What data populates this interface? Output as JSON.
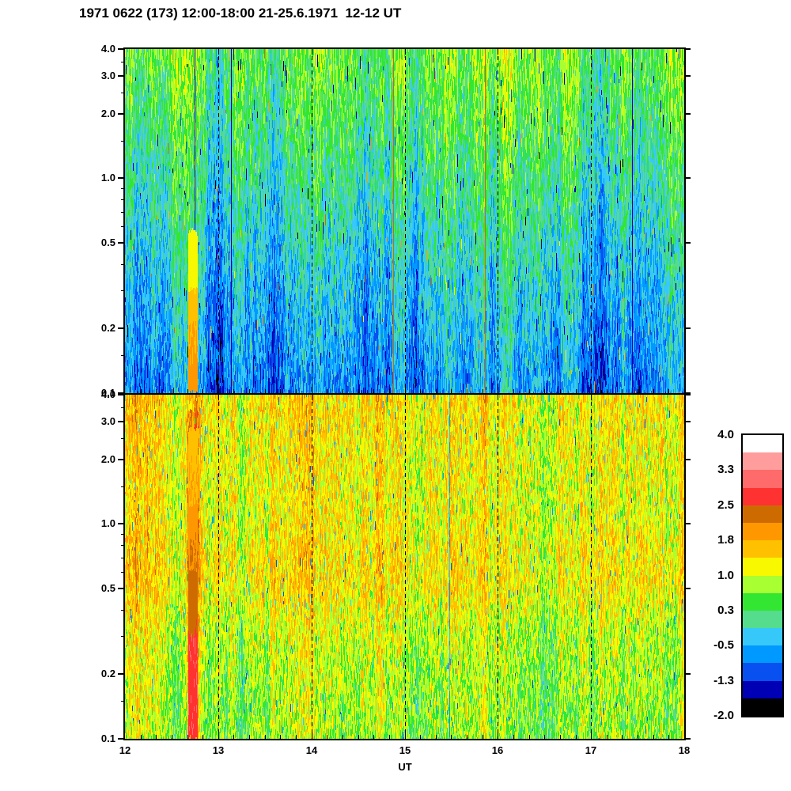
{
  "title": "1971 0622 (173) 12:00-18:00 21-25.6.1971  12-12 UT",
  "chart_data": {
    "type": "heatmap",
    "title": "1971 0622 (173) 12:00-18:00 21-25.6.1971  12-12 UT",
    "xlabel": "UT",
    "x_range": [
      12,
      18
    ],
    "x_major_ticks": [
      12,
      13,
      14,
      15,
      16,
      17,
      18
    ],
    "x_tick_labels": [
      "12",
      "13",
      "14",
      "15",
      "16",
      "17",
      "18"
    ],
    "x_minor_step_hours": 0.166667,
    "dashed_gridlines_ut": [
      13,
      14,
      15,
      16,
      17
    ],
    "y_scale": "log",
    "y_range": [
      0.1,
      4.0
    ],
    "y_major_ticks": [
      4.0,
      3.0,
      2.0,
      1.0,
      0.5,
      0.2,
      0.1
    ],
    "y_tick_labels": [
      "4.0",
      "3.0",
      "2.0",
      "1.0",
      "0.5",
      "0.2",
      "0.1"
    ],
    "y_minor_ticks": [
      3.5,
      2.5,
      1.5,
      0.9,
      0.8,
      0.7,
      0.6,
      0.4,
      0.3,
      0.15
    ],
    "colorbar": {
      "value_range": [
        -2.0,
        4.0
      ],
      "band_value_step": 0.375,
      "labels": [
        "4.0",
        "3.3",
        "2.5",
        "1.8",
        "1.0",
        "0.3",
        "-0.5",
        "-1.3",
        "-2.0"
      ],
      "band_colors_top_to_bottom": [
        "#FFFFFF",
        "#FF9C9C",
        "#FF6B6B",
        "#FF3232",
        "#CE6B00",
        "#FF9800",
        "#FFC000",
        "#F8F800",
        "#A8FF32",
        "#32E632",
        "#55DC8C",
        "#37C8FA",
        "#0099FF",
        "#0850F0",
        "#0000B4",
        "#000000"
      ],
      "position": "right"
    },
    "event": {
      "ut_core_start": 12.675,
      "ut_core_end": 12.775,
      "ut_halo_start": 12.655,
      "ut_halo_end": 12.795,
      "description": "Strong burst/absorption event near 12.7 UT: yellow-orange column in upper panel below 0.5, orange-brown-red column in lower panel"
    },
    "panels": [
      {
        "id": "upper",
        "seed": 1971,
        "description": "Upper spectrogram panel: green/yellow-green/teal speckle at top grading into cyan and sky-blue at bottom, thin dark-blue streaks, rare warm pixels",
        "profile": {
          "v_top": 0.55,
          "v_bottom": -0.75,
          "noise": 1.0,
          "bias_walk": 0.38,
          "seg_min": 4,
          "seg_max": 16,
          "wave": {
            "amp": 0.15,
            "period": 230,
            "phase": 1.3
          },
          "speckles": [
            {
              "p": 0.013,
              "min": -1.7,
              "max": -1.0
            },
            {
              "p": 0.004,
              "min": 1.1,
              "max": 2.3
            }
          ],
          "columns": [
            {
              "p": 0.004,
              "v": 2.3
            },
            {
              "p": 0.003,
              "v": -1.4
            }
          ]
        },
        "event_zones": [
          {
            "t0": 0.53,
            "t1": 0.7,
            "v0": 1.15,
            "v1": 1.3
          },
          {
            "t0": 0.7,
            "t1": 1.0,
            "v0": 1.55,
            "v1": 1.95
          }
        ]
      },
      {
        "id": "lower",
        "seed": 622,
        "description": "Lower spectrogram panel: orange/amber/yellow/green speckle, strongest orange band near 0.5-0.7, yellow-green toward bottom, sparse cyan specks",
        "profile": {
          "v_top": 1.35,
          "v_bottom": 0.75,
          "noise": 1.15,
          "bias_walk": 0.34,
          "seg_min": 3,
          "seg_max": 11,
          "midband": {
            "center": 0.52,
            "width": 0.13,
            "amp": 0.3
          },
          "wave": {
            "amp": 0.1,
            "period": 190,
            "phase": 0.4
          },
          "speckles": [
            {
              "p": 0.018,
              "min": -0.7,
              "max": 0.1
            },
            {
              "p": 0.003,
              "min": -1.1,
              "max": -0.8
            }
          ],
          "columns": [
            {
              "p": 0.0035,
              "v": 2.6
            },
            {
              "p": 0.002,
              "v": -0.5
            }
          ]
        },
        "event_halo": {
          "t0": 0.05,
          "boost": 0.5
        },
        "event_zones": [
          {
            "t0": 0.1,
            "t1": 0.32,
            "v0": 1.6,
            "v1": 1.75
          },
          {
            "t0": 0.32,
            "t1": 0.52,
            "v0": 1.9,
            "v1": 2.2
          },
          {
            "t0": 0.52,
            "t1": 0.7,
            "v0": 2.25,
            "v1": 2.45
          },
          {
            "t0": 0.7,
            "t1": 1.0,
            "v0": 2.7,
            "v1": 2.72,
            "speck_p": 0.1,
            "speck_v": 3.05
          }
        ]
      }
    ]
  }
}
